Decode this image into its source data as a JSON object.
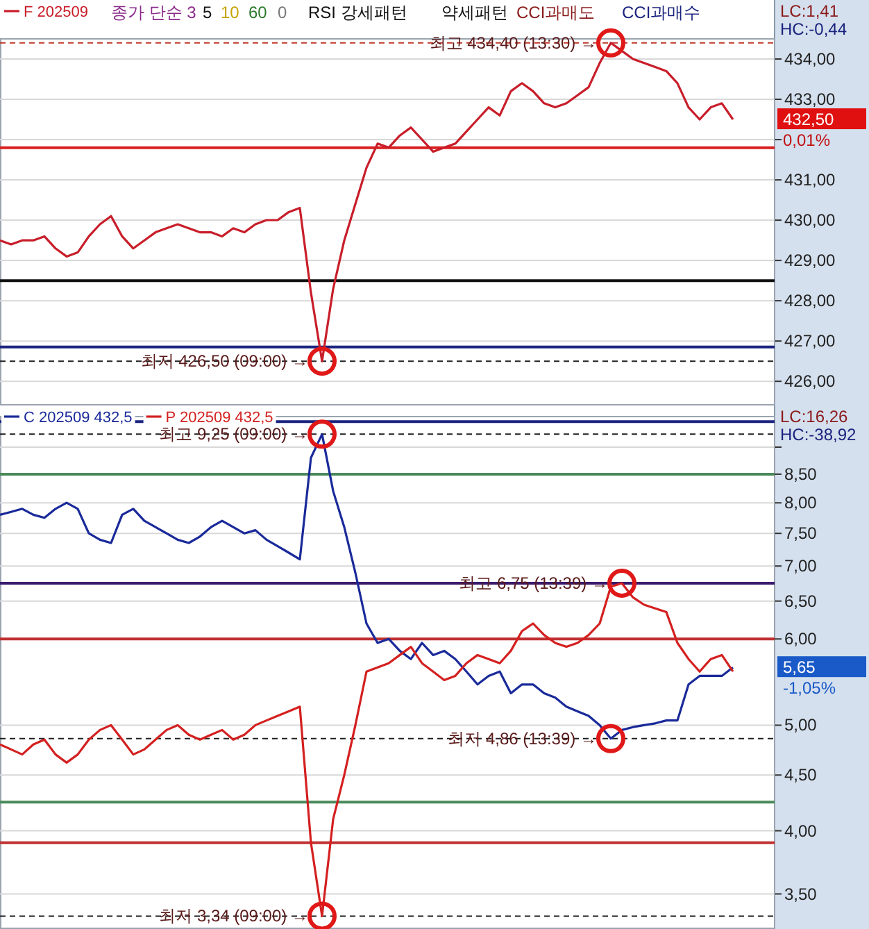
{
  "chart_data": [
    {
      "type": "line",
      "categories": [
        null,
        null,
        null,
        null,
        null,
        null,
        null,
        null,
        null,
        null,
        null,
        null,
        null,
        null,
        null,
        null,
        null,
        null,
        null,
        null,
        null,
        null,
        null,
        null,
        null,
        null,
        null,
        null,
        null,
        null,
        null,
        null,
        null,
        null,
        null,
        null,
        null,
        null,
        null,
        null,
        null,
        null,
        null,
        null,
        null,
        null,
        null,
        null,
        null,
        null,
        null,
        null,
        null,
        null,
        null,
        null,
        null,
        null,
        null,
        null,
        null,
        null,
        null,
        null,
        null,
        null,
        null
      ],
      "series": [
        {
          "name": "F 202509",
          "color": "#c81e2a",
          "values": [
            429.5,
            429.4,
            429.5,
            429.5,
            429.6,
            429.3,
            429.1,
            429.2,
            429.6,
            429.9,
            430.1,
            429.6,
            429.3,
            429.5,
            429.7,
            429.8,
            429.9,
            429.8,
            429.7,
            429.7,
            429.6,
            429.8,
            429.7,
            429.9,
            430.0,
            430.0,
            430.2,
            430.3,
            428.2,
            426.5,
            428.3,
            429.5,
            430.4,
            431.3,
            431.9,
            431.8,
            432.1,
            432.3,
            432.0,
            431.7,
            431.8,
            431.9,
            432.2,
            432.5,
            432.8,
            432.6,
            433.2,
            433.4,
            433.2,
            432.9,
            432.8,
            432.9,
            433.1,
            433.3,
            433.9,
            434.4,
            434.2,
            434.0,
            433.9,
            433.8,
            433.7,
            433.4,
            432.8,
            432.5,
            432.8,
            432.9,
            432.5
          ]
        }
      ],
      "ylim": [
        425.4,
        434.5
      ],
      "yticks": [
        {
          "value": 426,
          "label": "426,00"
        },
        {
          "value": 427,
          "label": "427,00"
        },
        {
          "value": 428,
          "label": "428,00"
        },
        {
          "value": 429,
          "label": "429,00"
        },
        {
          "value": 430,
          "label": "430,00"
        },
        {
          "value": 431,
          "label": "431,00"
        },
        {
          "value": 432,
          "label": null
        },
        {
          "value": 433,
          "label": "433,00"
        },
        {
          "value": 434,
          "label": "434,00"
        }
      ],
      "grid": "y",
      "legend": "top left",
      "ref_lines": [
        {
          "axis": "y",
          "value": 431.8,
          "color": "#d81e1e"
        },
        {
          "axis": "y",
          "value": 428.5,
          "color": "#101010"
        },
        {
          "axis": "y",
          "value": 426.85,
          "color": "#1a237e"
        },
        {
          "axis": "y",
          "value": 426.5,
          "color": "#202020",
          "line_style": "dashed"
        },
        {
          "axis": "y",
          "value": 434.4,
          "color": "#c0392b",
          "line_style": "dashed"
        }
      ],
      "annotations": [
        "종가 단순 3",
        "5",
        "10",
        "60",
        "0",
        "RSI 강세패턴",
        "약세패턴",
        "CCI과매도",
        "CCI과매수",
        "LC:1,41",
        "HC:-0,44",
        "432,50",
        "0,01%",
        {
          "text": "최고 434,40 (13:30) →",
          "y": 434.4
        },
        {
          "text": "최저 426,50 (09:00) →",
          "y": 426.5
        }
      ]
    },
    {
      "type": "line",
      "log": "y",
      "categories": [
        null,
        null,
        null,
        null,
        null,
        null,
        null,
        null,
        null,
        null,
        null,
        null,
        null,
        null,
        null,
        null,
        null,
        null,
        null,
        null,
        null,
        null,
        null,
        null,
        null,
        null,
        null,
        null,
        null,
        null,
        null,
        null,
        null,
        null,
        null,
        null,
        null,
        null,
        null,
        null,
        null,
        null,
        null,
        null,
        null,
        null,
        null,
        null,
        null,
        null,
        null,
        null,
        null,
        null,
        null,
        null,
        null,
        null,
        null,
        null,
        null,
        null,
        null,
        null,
        null,
        null,
        null
      ],
      "series": [
        {
          "name": "C 202509 432,5",
          "color": "#1a2a9a",
          "values": [
            7.8,
            7.85,
            7.9,
            7.8,
            7.75,
            7.9,
            8.0,
            7.9,
            7.5,
            7.4,
            7.35,
            7.8,
            7.9,
            7.7,
            7.6,
            7.5,
            7.4,
            7.35,
            7.45,
            7.6,
            7.7,
            7.6,
            7.5,
            7.55,
            7.4,
            7.3,
            7.2,
            7.1,
            8.8,
            9.25,
            8.2,
            7.6,
            6.9,
            6.2,
            5.95,
            6.0,
            5.85,
            5.75,
            5.95,
            5.8,
            5.85,
            5.75,
            5.6,
            5.45,
            5.55,
            5.6,
            5.35,
            5.45,
            5.45,
            5.35,
            5.3,
            5.2,
            5.15,
            5.1,
            5.0,
            4.86,
            4.95,
            4.98,
            5.0,
            5.02,
            5.05,
            5.05,
            5.45,
            5.55,
            5.55,
            5.55,
            5.65
          ]
        },
        {
          "name": "P 202509 432,5",
          "color": "#d42020",
          "values": [
            4.8,
            4.75,
            4.7,
            4.8,
            4.85,
            4.7,
            4.62,
            4.7,
            4.85,
            4.95,
            5.0,
            4.85,
            4.7,
            4.75,
            4.85,
            4.95,
            5.0,
            4.9,
            4.85,
            4.9,
            4.95,
            4.85,
            4.9,
            5.0,
            5.05,
            5.1,
            5.15,
            5.2,
            3.9,
            3.34,
            4.1,
            4.5,
            5.0,
            5.6,
            5.65,
            5.7,
            5.8,
            5.9,
            5.7,
            5.6,
            5.5,
            5.55,
            5.7,
            5.8,
            5.75,
            5.7,
            5.85,
            6.1,
            6.2,
            6.05,
            5.95,
            5.9,
            5.95,
            6.05,
            6.2,
            6.7,
            6.75,
            6.55,
            6.45,
            6.4,
            6.35,
            5.95,
            5.75,
            5.6,
            5.75,
            5.8,
            5.6
          ]
        }
      ],
      "ylim": [
        3.25,
        9.6
      ],
      "yticks": [
        {
          "value": 3.5,
          "label": "3,50"
        },
        {
          "value": 4,
          "label": "4,00"
        },
        {
          "value": 4.5,
          "label": "4,50"
        },
        {
          "value": 5,
          "label": "5,00"
        },
        {
          "value": 6,
          "label": "6,00"
        },
        {
          "value": 6.5,
          "label": "6,50"
        },
        {
          "value": 7,
          "label": "7,00"
        },
        {
          "value": 7.5,
          "label": "7,50"
        },
        {
          "value": 8,
          "label": "8,00"
        },
        {
          "value": 8.5,
          "label": "8,50"
        },
        {
          "value": 9,
          "label": null
        }
      ],
      "grid": "y",
      "legend": "top left",
      "ref_lines": [
        {
          "axis": "y",
          "value": 9.5,
          "color": "#1a237e"
        },
        {
          "axis": "y",
          "value": 9.25,
          "color": "#202020",
          "line_style": "dashed"
        },
        {
          "axis": "y",
          "value": 8.5,
          "color": "#4a8a5a"
        },
        {
          "axis": "y",
          "value": 6.75,
          "color": "#3a1a6a"
        },
        {
          "axis": "y",
          "value": 6.0,
          "color": "#c03030"
        },
        {
          "axis": "y",
          "value": 4.86,
          "color": "#202020",
          "line_style": "dashed"
        },
        {
          "axis": "y",
          "value": 4.25,
          "color": "#4a8a5a"
        },
        {
          "axis": "y",
          "value": 3.9,
          "color": "#c03030"
        },
        {
          "axis": "y",
          "value": 3.34,
          "color": "#202020",
          "line_style": "dashed"
        }
      ],
      "annotations": [
        "LC:16,26",
        "HC:-38,92",
        "5,65",
        "-1,05%",
        {
          "text": "최고 9,25 (09:00) →",
          "y": 9.25
        },
        {
          "text": "최고 6,75 (13:39) →",
          "y": 6.75
        },
        {
          "text": "최저 4,86 (13:39) →",
          "y": 4.86
        },
        {
          "text": "최저 3,34 (09:00) →",
          "y": 3.34
        }
      ]
    }
  ]
}
